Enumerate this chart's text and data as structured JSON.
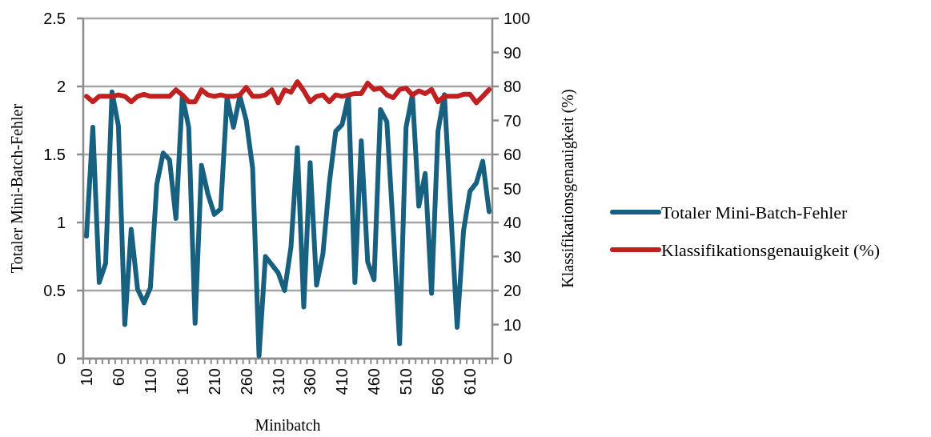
{
  "chart_data": {
    "type": "line",
    "xlabel": "Minibatch",
    "ylabel": "Totaler Mini-Batch-Fehler",
    "y2label": "Klassifikationsgenauigkeit (%)",
    "categories": [
      "10",
      null,
      null,
      null,
      null,
      "60",
      null,
      null,
      null,
      null,
      "110",
      null,
      null,
      null,
      null,
      "160",
      null,
      null,
      null,
      null,
      "210",
      null,
      null,
      null,
      null,
      "260",
      null,
      null,
      null,
      null,
      "310",
      null,
      null,
      null,
      null,
      "360",
      null,
      null,
      null,
      null,
      "410",
      null,
      null,
      null,
      null,
      "460",
      null,
      null,
      null,
      null,
      "510",
      null,
      null,
      null,
      null,
      "560",
      null,
      null,
      null,
      null,
      "610",
      null,
      null,
      null
    ],
    "series": [
      {
        "name": "Totaler Mini-Batch-Fehler",
        "color": "#17607f",
        "values": [
          0.9,
          1.7,
          0.56,
          0.7,
          1.96,
          1.71,
          0.25,
          0.95,
          0.51,
          0.41,
          0.52,
          1.28,
          1.51,
          1.46,
          1.03,
          1.93,
          1.7,
          0.26,
          1.42,
          1.21,
          1.06,
          1.1,
          1.92,
          1.7,
          1.93,
          1.75,
          1.4,
          0.02,
          0.75,
          0.69,
          0.63,
          0.5,
          0.82,
          1.55,
          0.38,
          1.44,
          0.54,
          0.77,
          1.29,
          1.67,
          1.72,
          1.93,
          0.56,
          1.6,
          0.71,
          0.58,
          1.83,
          1.74,
          0.95,
          0.11,
          1.7,
          1.94,
          1.12,
          1.36,
          0.48,
          1.67,
          1.94,
          1.08,
          0.23,
          0.94,
          1.23,
          1.29,
          1.45,
          1.08
        ]
      },
      {
        "name": "Klassifikationsgenauigkeit (%)",
        "color": "#c0201f",
        "axis": "y2",
        "values": [
          77.1,
          75.5,
          77.1,
          77.1,
          77.1,
          77.5,
          77.1,
          75.5,
          77.1,
          77.7,
          77.1,
          77.1,
          77.1,
          77.1,
          79.0,
          77.5,
          75.5,
          75.5,
          79.0,
          77.5,
          77.1,
          77.5,
          77.1,
          77.1,
          77.5,
          79.7,
          77.1,
          77.1,
          77.5,
          79.0,
          75.2,
          79.0,
          78.3,
          81.4,
          78.7,
          75.5,
          77.1,
          77.5,
          75.5,
          77.5,
          77.1,
          77.5,
          77.9,
          77.9,
          81.0,
          79.1,
          79.5,
          77.5,
          76.7,
          79.1,
          79.5,
          77.5,
          78.7,
          77.9,
          79.1,
          75.5,
          77.1,
          77.1,
          77.1,
          77.7,
          77.7,
          75.2,
          77.1,
          79.1
        ]
      }
    ],
    "ylim": [
      0,
      2.5
    ],
    "yticks": [
      0,
      0.5,
      1,
      1.5,
      2,
      2.5
    ],
    "y2lim": [
      0,
      100
    ],
    "y2ticks": [
      0,
      10,
      20,
      30,
      40,
      50,
      60,
      70,
      80,
      90,
      100
    ],
    "grid": "y",
    "legend": "right",
    "line_style": "solid",
    "marker": "none"
  }
}
